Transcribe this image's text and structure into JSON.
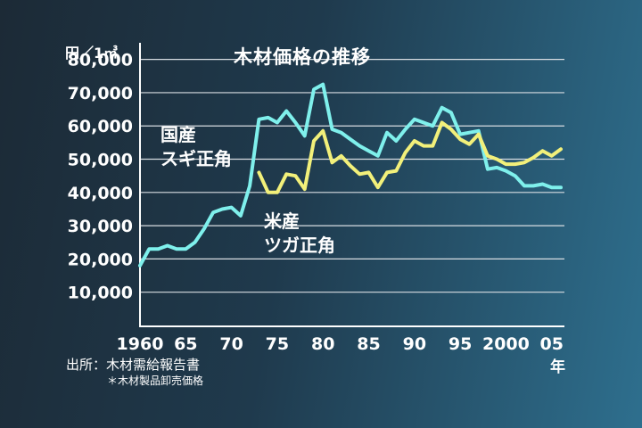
{
  "chart_data": {
    "type": "line",
    "title": "木材価格の推移",
    "ylabel": "円／1㎥",
    "xlabel": "年",
    "ylim": [
      0,
      85000
    ],
    "xlim": [
      1960,
      2006
    ],
    "grid": true,
    "yticks": [
      {
        "value": 10000,
        "label": "10,000"
      },
      {
        "value": 20000,
        "label": "20,000"
      },
      {
        "value": 30000,
        "label": "30,000"
      },
      {
        "value": 40000,
        "label": "40,000"
      },
      {
        "value": 50000,
        "label": "50,000"
      },
      {
        "value": 60000,
        "label": "60,000"
      },
      {
        "value": 70000,
        "label": "70,000"
      },
      {
        "value": 80000,
        "label": "80,000"
      }
    ],
    "xticks": [
      {
        "value": 1960,
        "label": "1960"
      },
      {
        "value": 1965,
        "label": "65"
      },
      {
        "value": 1970,
        "label": "70"
      },
      {
        "value": 1975,
        "label": "75"
      },
      {
        "value": 1980,
        "label": "80"
      },
      {
        "value": 1985,
        "label": "85"
      },
      {
        "value": 1990,
        "label": "90"
      },
      {
        "value": 1995,
        "label": "95"
      },
      {
        "value": 2000,
        "label": "2000"
      },
      {
        "value": 2005,
        "label": "05"
      }
    ],
    "series": [
      {
        "name": "国産スギ正角",
        "color": "#7ff0ec",
        "x": [
          1960,
          1961,
          1962,
          1963,
          1964,
          1965,
          1966,
          1967,
          1968,
          1969,
          1970,
          1971,
          1972,
          1973,
          1974,
          1975,
          1976,
          1977,
          1978,
          1979,
          1980,
          1981,
          1982,
          1983,
          1984,
          1985,
          1986,
          1987,
          1988,
          1989,
          1990,
          1991,
          1992,
          1993,
          1994,
          1995,
          1996,
          1997,
          1998,
          1999,
          2000,
          2001,
          2002,
          2003,
          2004,
          2005,
          2006
        ],
        "values": [
          18000,
          23000,
          23000,
          24000,
          23000,
          23000,
          25000,
          29000,
          34000,
          35000,
          35500,
          33000,
          42000,
          62000,
          62500,
          61000,
          64500,
          61000,
          57000,
          71000,
          72500,
          59000,
          58000,
          56000,
          54000,
          52500,
          51000,
          58000,
          55500,
          59000,
          62000,
          61000,
          60000,
          65500,
          64000,
          57500,
          58000,
          58500,
          47000,
          47500,
          46500,
          45000,
          42000,
          42000,
          42500,
          41500,
          41500
        ]
      },
      {
        "name": "米産ツガ正角",
        "color": "#f2f07a",
        "x": [
          1973,
          1974,
          1975,
          1976,
          1977,
          1978,
          1979,
          1980,
          1981,
          1982,
          1983,
          1984,
          1985,
          1986,
          1987,
          1988,
          1989,
          1990,
          1991,
          1992,
          1993,
          1994,
          1995,
          1996,
          1997,
          1998,
          1999,
          2000,
          2001,
          2002,
          2003,
          2004,
          2005,
          2006
        ],
        "values": [
          46000,
          40000,
          40000,
          45500,
          45000,
          41000,
          55500,
          58500,
          49000,
          51000,
          48000,
          45500,
          46000,
          41500,
          46000,
          46500,
          52000,
          55500,
          54000,
          54000,
          61000,
          59000,
          56000,
          54500,
          57500,
          51000,
          50000,
          48500,
          48500,
          49000,
          50500,
          52500,
          51000,
          53000
        ]
      }
    ]
  },
  "labels": {
    "domestic_line1": "国産",
    "domestic_line2": "スギ正角",
    "import_line1": "米産",
    "import_line2": "ツガ正角",
    "source": "出所：木材需給報告書",
    "note": "＊木材製品卸売価格"
  },
  "colors": {
    "background_dark": "#1c2a36",
    "background_light": "#2e6f8e",
    "grid": "#d8dde2",
    "text": "#ffffff"
  }
}
